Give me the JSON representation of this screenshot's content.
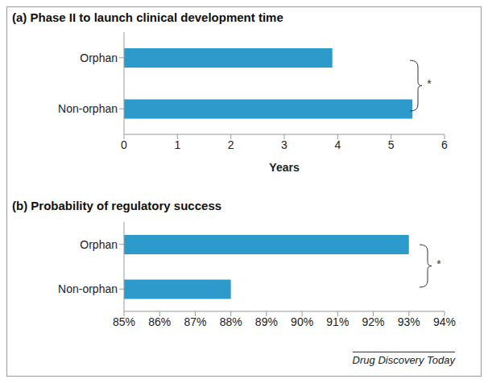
{
  "chart_data": [
    {
      "type": "bar",
      "orientation": "horizontal",
      "title": "(a) Phase II to launch clinical development time",
      "xlabel": "Years",
      "categories": [
        "Orphan",
        "Non-orphan"
      ],
      "values": [
        3.9,
        5.4
      ],
      "color": "#2e9acb",
      "xlim": [
        0,
        6
      ],
      "xticks": [
        0,
        1,
        2,
        3,
        4,
        5,
        6
      ],
      "grid": false,
      "annotations": [
        "*"
      ]
    },
    {
      "type": "bar",
      "orientation": "horizontal",
      "title": "(b) Probability of regulatory success",
      "categories": [
        "Orphan",
        "Non-orphan"
      ],
      "values": [
        93,
        88
      ],
      "color": "#2e9acb",
      "xlim": [
        85,
        94
      ],
      "xticks": [
        {
          "value": 85,
          "label": "85%"
        },
        {
          "value": 86,
          "label": "86%"
        },
        {
          "value": 87,
          "label": "87%"
        },
        {
          "value": 88,
          "label": "88%"
        },
        {
          "value": 89,
          "label": "89%"
        },
        {
          "value": 90,
          "label": "90%"
        },
        {
          "value": 91,
          "label": "91%"
        },
        {
          "value": 92,
          "label": "92%"
        },
        {
          "value": 93,
          "label": "93%"
        },
        {
          "value": 94,
          "label": "94%"
        }
      ],
      "grid": false,
      "annotations": [
        "*"
      ]
    }
  ],
  "source": "Drug Discovery Today"
}
